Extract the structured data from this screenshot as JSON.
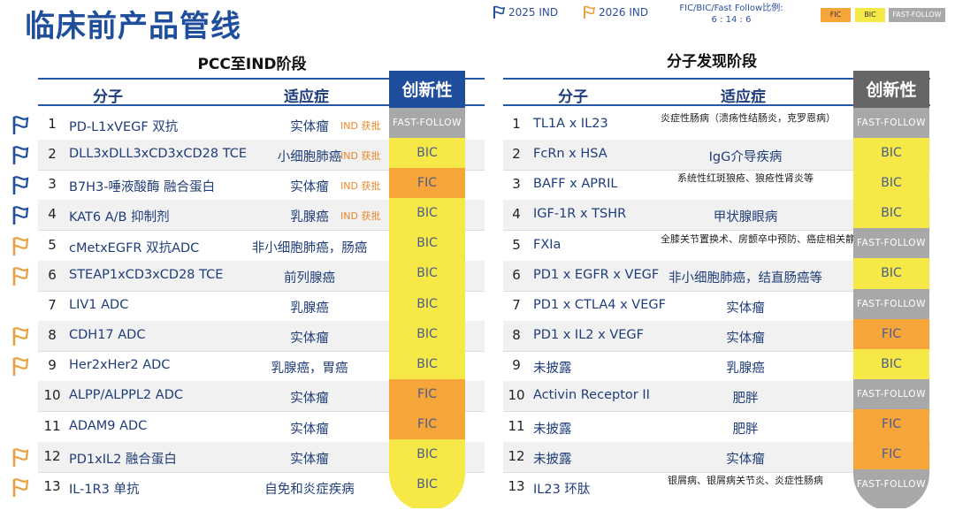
{
  "title": "临床前产品管线",
  "legend": {
    "ind2025": "2025 IND",
    "ind2026": "2026 IND",
    "ratio_label": "FIC/BIC/Fast Follow比例:",
    "ratio_value": "6 : 14 : 6",
    "swatch_fic": "FIC",
    "swatch_bic": "BIC",
    "swatch_ff": "FAST-FOLLOW"
  },
  "colors": {
    "blue": "#1f4e9c",
    "fic": "#f6a53a",
    "bic": "#f6e847",
    "ff": "#a8a8a8",
    "gray_head": "#666666",
    "flag_blue": "#1f4e9c",
    "flag_orange": "#e8a13f"
  },
  "left": {
    "section_title": "PCC至IND阶段",
    "headers": {
      "molecule": "分子",
      "indication": "适应症",
      "innovation": "创新性"
    },
    "rows": [
      {
        "num": "1",
        "molecule": "PD-L1xVEGF 双抗",
        "indication": "实体瘤",
        "ind_flag": "IND 获批",
        "innovation": "FAST-FOLLOW",
        "type": "ff",
        "flag": "blue"
      },
      {
        "num": "2",
        "molecule": "DLL3xDLL3xCD3xCD28 TCE",
        "indication": "小细胞肺癌",
        "ind_flag": "IND 获批",
        "innovation": "BIC",
        "type": "bic",
        "flag": "blue"
      },
      {
        "num": "3",
        "molecule": "B7H3-唾液酸酶 融合蛋白",
        "indication": "实体瘤",
        "ind_flag": "IND 获批",
        "innovation": "FIC",
        "type": "fic",
        "flag": "blue"
      },
      {
        "num": "4",
        "molecule": "KAT6 A/B 抑制剂",
        "indication": "乳腺癌",
        "ind_flag": "IND 获批",
        "innovation": "BIC",
        "type": "bic",
        "flag": "blue"
      },
      {
        "num": "5",
        "molecule": "cMetxEGFR 双抗ADC",
        "indication": "非小细胞肺癌，肠癌",
        "ind_flag": "",
        "innovation": "BIC",
        "type": "bic",
        "flag": "orange"
      },
      {
        "num": "6",
        "molecule": "STEAP1xCD3xCD28 TCE",
        "indication": "前列腺癌",
        "ind_flag": "",
        "innovation": "BIC",
        "type": "bic",
        "flag": "orange"
      },
      {
        "num": "7",
        "molecule": "LIV1 ADC",
        "indication": "乳腺癌",
        "ind_flag": "",
        "innovation": "BIC",
        "type": "bic",
        "flag": ""
      },
      {
        "num": "8",
        "molecule": "CDH17 ADC",
        "indication": "实体瘤",
        "ind_flag": "",
        "innovation": "BIC",
        "type": "bic",
        "flag": "orange"
      },
      {
        "num": "9",
        "molecule": "Her2xHer2 ADC",
        "indication": "乳腺癌，胃癌",
        "ind_flag": "",
        "innovation": "BIC",
        "type": "bic",
        "flag": "orange"
      },
      {
        "num": "10",
        "molecule": "ALPP/ALPPL2 ADC",
        "indication": "实体瘤",
        "ind_flag": "",
        "innovation": "FIC",
        "type": "fic",
        "flag": ""
      },
      {
        "num": "11",
        "molecule": "ADAM9 ADC",
        "indication": "实体瘤",
        "ind_flag": "",
        "innovation": "FIC",
        "type": "fic",
        "flag": ""
      },
      {
        "num": "12",
        "molecule": "PD1xIL2 融合蛋白",
        "indication": "实体瘤",
        "ind_flag": "",
        "innovation": "BIC",
        "type": "bic",
        "flag": "orange"
      },
      {
        "num": "13",
        "molecule": "IL-1R3 单抗",
        "indication": "自免和炎症疾病",
        "ind_flag": "",
        "innovation": "BIC",
        "type": "bic",
        "flag": "orange"
      }
    ]
  },
  "right": {
    "section_title": "分子发现阶段",
    "headers": {
      "molecule": "分子",
      "indication": "适应症",
      "innovation": "创新性"
    },
    "rows": [
      {
        "num": "1",
        "molecule": "TL1A x IL23",
        "indication": "炎症性肠病（溃疡性结肠炎，克罗恩病）",
        "small": true,
        "innovation": "FAST-FOLLOW",
        "type": "ff"
      },
      {
        "num": "2",
        "molecule": "FcRn x HSA",
        "indication": "IgG介导疾病",
        "small": false,
        "innovation": "BIC",
        "type": "bic"
      },
      {
        "num": "3",
        "molecule": "BAFF x APRIL",
        "indication": "系统性红斑狼疮、狼疮性肾炎等",
        "small": true,
        "innovation": "BIC",
        "type": "bic"
      },
      {
        "num": "4",
        "molecule": "IGF-1R x TSHR",
        "indication": "甲状腺眼病",
        "small": false,
        "innovation": "BIC",
        "type": "bic"
      },
      {
        "num": "5",
        "molecule": "FXIa",
        "indication": "全膝关节置换术、房颤卒中预防、癌症相关静脉血栓栓塞症等",
        "small": true,
        "innovation": "FAST-FOLLOW",
        "type": "ff"
      },
      {
        "num": "6",
        "molecule": "PD1 x EGFR x VEGF",
        "indication": "非小细胞肺癌，结直肠癌等",
        "small": false,
        "innovation": "BIC",
        "type": "bic"
      },
      {
        "num": "7",
        "molecule": "PD1 x CTLA4 x VEGF",
        "indication": "实体瘤",
        "small": false,
        "innovation": "FAST-FOLLOW",
        "type": "ff"
      },
      {
        "num": "8",
        "molecule": "PD1 x IL2 x VEGF",
        "indication": "实体瘤",
        "small": false,
        "innovation": "FIC",
        "type": "fic"
      },
      {
        "num": "9",
        "molecule": "未披露",
        "indication": "乳腺癌",
        "small": false,
        "innovation": "BIC",
        "type": "bic"
      },
      {
        "num": "10",
        "molecule": "Activin Receptor II",
        "indication": "肥胖",
        "small": false,
        "innovation": "FAST-FOLLOW",
        "type": "ff"
      },
      {
        "num": "11",
        "molecule": "未披露",
        "indication": "肥胖",
        "small": false,
        "innovation": "FIC",
        "type": "fic"
      },
      {
        "num": "12",
        "molecule": "未披露",
        "indication": "实体瘤",
        "small": false,
        "innovation": "FIC",
        "type": "fic"
      },
      {
        "num": "13",
        "molecule": "IL23 环肽",
        "indication": "银屑病、银屑病关节炎、炎症性肠病",
        "small": true,
        "innovation": "FAST-FOLLOW",
        "type": "ff"
      }
    ]
  }
}
